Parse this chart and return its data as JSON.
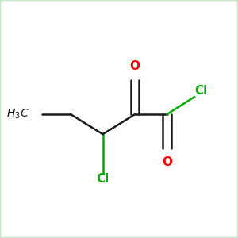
{
  "background_color": "#ffffff",
  "border_color": "#cce8cc",
  "bond_color": "#1a1a1a",
  "oxygen_color": "#ff0000",
  "chlorine_color": "#00aa00",
  "text_color": "#1a1a1a",
  "figsize": [
    3.0,
    3.0
  ],
  "dpi": 100,
  "bond_lw": 1.8,
  "font_size_atom": 11,
  "font_size_h3c": 10,
  "xlim": [
    0,
    10
  ],
  "ylim": [
    0,
    10
  ],
  "h3c": [
    1.0,
    5.2
  ],
  "ch2": [
    2.8,
    5.2
  ],
  "chcl": [
    4.2,
    4.35
  ],
  "c_carb": [
    5.6,
    5.2
  ],
  "c_acyl": [
    7.0,
    5.2
  ],
  "o_carb": [
    5.6,
    7.0
  ],
  "o_acyl": [
    7.0,
    3.4
  ],
  "cl_ch": [
    4.2,
    2.7
  ],
  "cl_acyl": [
    8.2,
    5.95
  ]
}
